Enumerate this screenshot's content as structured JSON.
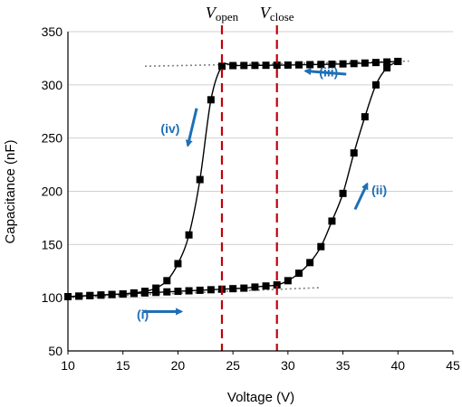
{
  "chart_data": {
    "type": "line",
    "xlabel": "Voltage (V)",
    "ylabel": "Capacitance (nF)",
    "xlim": [
      10,
      45
    ],
    "ylim": [
      50,
      350
    ],
    "xticks": [
      10,
      15,
      20,
      25,
      30,
      35,
      40,
      45
    ],
    "yticks": [
      50,
      100,
      150,
      200,
      250,
      300,
      350
    ],
    "grid": "horizontal",
    "series": [
      {
        "direction": "up-sweep",
        "color": "#000000",
        "x": [
          10,
          11,
          12,
          13,
          14,
          15,
          16,
          17,
          18,
          19,
          20,
          21,
          22,
          23,
          24,
          25,
          26,
          27,
          28,
          29,
          30,
          31,
          32,
          33,
          34,
          35,
          36,
          37,
          38,
          39,
          40
        ],
        "y": [
          101,
          101.5,
          102,
          102.5,
          103,
          103.5,
          104,
          104.5,
          105,
          105.5,
          106,
          106.5,
          107,
          107.5,
          108,
          108.5,
          109,
          110,
          111,
          112,
          116,
          123,
          133,
          148,
          172,
          198,
          236,
          270,
          300,
          316,
          322
        ]
      },
      {
        "direction": "down-sweep",
        "color": "#000000",
        "x": [
          40,
          39,
          38,
          37,
          36,
          35,
          34,
          33,
          32,
          31,
          30,
          29,
          28,
          27,
          26,
          25,
          24,
          23,
          22,
          21,
          20,
          19,
          18,
          17,
          16,
          15,
          14,
          13,
          12,
          11,
          10
        ],
        "y": [
          322,
          321.5,
          321,
          320.5,
          320,
          319.7,
          319.4,
          319.2,
          319,
          318.8,
          318.6,
          318.5,
          318.4,
          318.3,
          318.2,
          318.1,
          317.5,
          286,
          211,
          159,
          132,
          116,
          109,
          106,
          104.5,
          103.5,
          103,
          102.5,
          102,
          101.5,
          101
        ]
      }
    ],
    "trend_lines": [
      {
        "style": "dotted",
        "color": "#808080",
        "x": [
          17,
          41
        ],
        "y": [
          317.5,
          322.3
        ]
      },
      {
        "style": "dotted",
        "color": "#808080",
        "x": [
          10,
          33
        ],
        "y": [
          100,
          109.5
        ]
      }
    ],
    "vlines": [
      {
        "x": 24,
        "label": "V",
        "sub": "open",
        "color": "#c0000a",
        "style": "dashed"
      },
      {
        "x": 29,
        "label": "V",
        "sub": "close",
        "color": "#c0000a",
        "style": "dashed"
      }
    ],
    "annotations": [
      {
        "text": "(i)",
        "x": 16.8,
        "y": 80
      },
      {
        "text": "(ii)",
        "x": 38.3,
        "y": 197
      },
      {
        "text": "(iii)",
        "x": 33.7,
        "y": 308
      },
      {
        "text": "(iv)",
        "x": 19.3,
        "y": 255
      }
    ],
    "arrows": [
      {
        "name": "arrow-i",
        "from": [
          16.8,
          87
        ],
        "to": [
          20.3,
          87
        ],
        "color": "#1f6fb5"
      },
      {
        "name": "arrow-ii",
        "from": [
          36.1,
          183
        ],
        "to": [
          37.2,
          207
        ],
        "color": "#1f6fb5"
      },
      {
        "name": "arrow-iii",
        "from": [
          35.3,
          310
        ],
        "to": [
          31.6,
          313
        ],
        "color": "#1f6fb5"
      },
      {
        "name": "arrow-iv",
        "from": [
          21.7,
          278
        ],
        "to": [
          20.9,
          243
        ],
        "color": "#1f6fb5"
      }
    ]
  }
}
